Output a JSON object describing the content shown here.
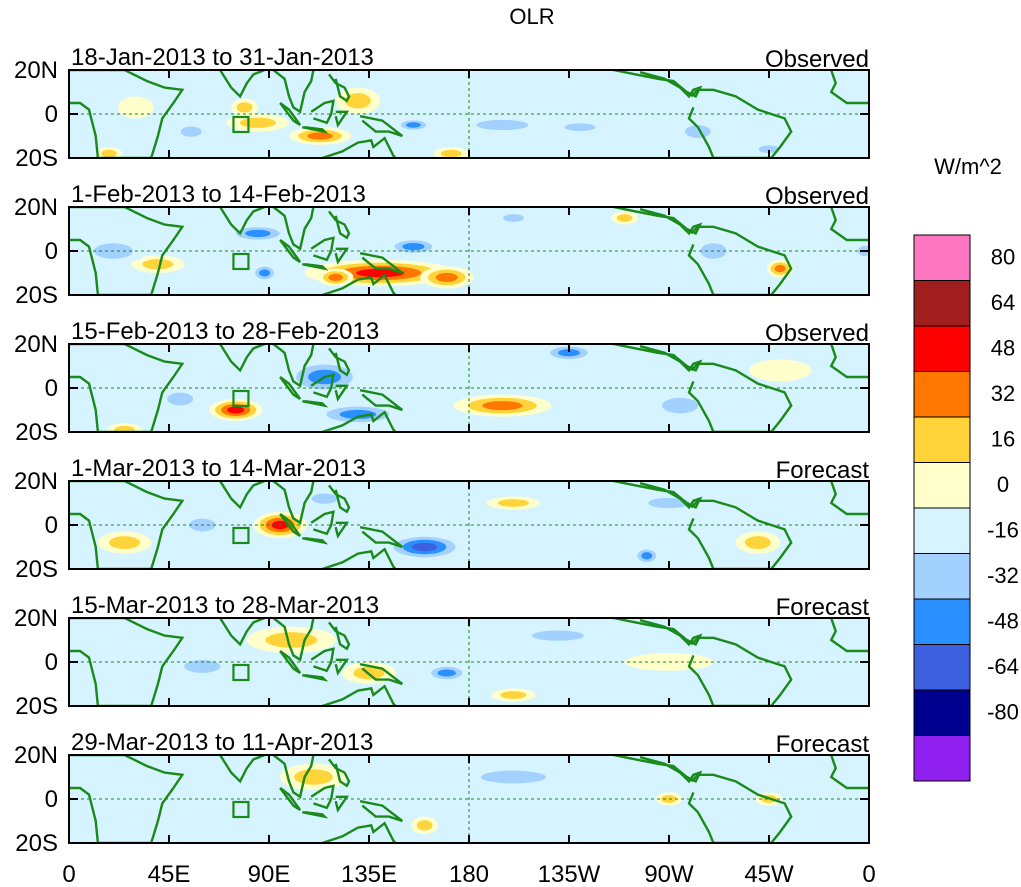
{
  "chart_data": {
    "type": "heatmap",
    "title": "OLR",
    "colorbar": {
      "unit": "W/m^2",
      "levels": [
        "80",
        "64",
        "48",
        "32",
        "16",
        "0",
        "-16",
        "-32",
        "-48",
        "-64",
        "-80"
      ],
      "colors": [
        "#ff77c0",
        "#a01e1e",
        "#ff0000",
        "#ff7700",
        "#ffd43b",
        "#ffffcc",
        "#d6f4ff",
        "#a2d0ff",
        "#2a90ff",
        "#3c60e0",
        "#00008f",
        "#9020f0"
      ]
    },
    "x_tick_labels": [
      "0",
      "45E",
      "90E",
      "135E",
      "180",
      "135W",
      "90W",
      "45W",
      "0"
    ],
    "y_tick_labels": [
      "20N",
      "0",
      "20S"
    ],
    "lon_range": [
      0,
      360
    ],
    "lat_range": [
      -20,
      20
    ],
    "panels": [
      {
        "period": "18-Jan-2013 to 31-Jan-2013",
        "kind": "Observed",
        "anomalies": [
          {
            "lon": 85,
            "lat": -4,
            "rlon": 14,
            "rlat": 4,
            "value": 24
          },
          {
            "lon": 113,
            "lat": -10,
            "rlon": 14,
            "rlat": 4,
            "value": 32
          },
          {
            "lon": 79,
            "lat": 3,
            "rlon": 6,
            "rlat": 4,
            "value": 18
          },
          {
            "lon": 130,
            "lat": 6,
            "rlon": 10,
            "rlat": 6,
            "value": 20
          },
          {
            "lon": 30,
            "lat": 3,
            "rlon": 8,
            "rlat": 5,
            "value": 12
          },
          {
            "lon": 18,
            "lat": -18,
            "rlon": 6,
            "rlat": 3,
            "value": 28
          },
          {
            "lon": 172,
            "lat": -18,
            "rlon": 8,
            "rlat": 3,
            "value": 24
          },
          {
            "lon": 55,
            "lat": -8,
            "rlon": 8,
            "rlat": 4,
            "value": -25
          },
          {
            "lon": 155,
            "lat": -5,
            "rlon": 8,
            "rlat": 3,
            "value": -35
          },
          {
            "lon": 195,
            "lat": -5,
            "rlon": 20,
            "rlat": 4,
            "value": -25
          },
          {
            "lon": 230,
            "lat": -6,
            "rlon": 12,
            "rlat": 3,
            "value": -30
          },
          {
            "lon": 283,
            "lat": -8,
            "rlon": 10,
            "rlat": 5,
            "value": -20
          },
          {
            "lon": 315,
            "lat": -16,
            "rlon": 8,
            "rlat": 3,
            "value": -18
          }
        ]
      },
      {
        "period": "1-Feb-2013 to 14-Feb-2013",
        "kind": "Observed",
        "anomalies": [
          {
            "lon": 140,
            "lat": -10,
            "rlon": 34,
            "rlat": 6,
            "value": 55
          },
          {
            "lon": 120,
            "lat": -12,
            "rlon": 8,
            "rlat": 4,
            "value": 45
          },
          {
            "lon": 170,
            "lat": -12,
            "rlon": 12,
            "rlat": 5,
            "value": 32
          },
          {
            "lon": 40,
            "lat": -6,
            "rlon": 12,
            "rlat": 4,
            "value": 16
          },
          {
            "lon": 320,
            "lat": -8,
            "rlon": 6,
            "rlat": 4,
            "value": 40
          },
          {
            "lon": 250,
            "lat": 15,
            "rlon": 6,
            "rlat": 3,
            "value": 18
          },
          {
            "lon": 85,
            "lat": 8,
            "rlon": 14,
            "rlat": 4,
            "value": -38
          },
          {
            "lon": 155,
            "lat": 2,
            "rlon": 12,
            "rlat": 4,
            "value": -45
          },
          {
            "lon": 88,
            "lat": -10,
            "rlon": 6,
            "rlat": 4,
            "value": -40
          },
          {
            "lon": 20,
            "lat": 0,
            "rlon": 15,
            "rlat": 6,
            "value": -20
          },
          {
            "lon": 290,
            "lat": 0,
            "rlon": 10,
            "rlat": 6,
            "value": -30
          },
          {
            "lon": 200,
            "lat": 15,
            "rlon": 8,
            "rlat": 3,
            "value": -25
          },
          {
            "lon": 358,
            "lat": 0,
            "rlon": 5,
            "rlat": 4,
            "value": -30
          }
        ]
      },
      {
        "period": "15-Feb-2013 to 28-Feb-2013",
        "kind": "Observed",
        "anomalies": [
          {
            "lon": 75,
            "lat": -10,
            "rlon": 12,
            "rlat": 5,
            "value": 50
          },
          {
            "lon": 195,
            "lat": -8,
            "rlon": 22,
            "rlat": 5,
            "value": 45
          },
          {
            "lon": 320,
            "lat": 8,
            "rlon": 14,
            "rlat": 5,
            "value": 12
          },
          {
            "lon": 25,
            "lat": -19,
            "rlon": 8,
            "rlat": 3,
            "value": 30
          },
          {
            "lon": 115,
            "lat": 5,
            "rlon": 18,
            "rlat": 8,
            "value": -40
          },
          {
            "lon": 130,
            "lat": -12,
            "rlon": 20,
            "rlat": 5,
            "value": -45
          },
          {
            "lon": 225,
            "lat": 16,
            "rlon": 12,
            "rlat": 4,
            "value": -40
          },
          {
            "lon": 275,
            "lat": -8,
            "rlon": 14,
            "rlat": 6,
            "value": -20
          },
          {
            "lon": 50,
            "lat": -5,
            "rlon": 10,
            "rlat": 5,
            "value": -18
          }
        ]
      },
      {
        "period": "1-Mar-2013 to 14-Mar-2013",
        "kind": "Forecast",
        "anomalies": [
          {
            "lon": 95,
            "lat": 0,
            "rlon": 12,
            "rlat": 6,
            "value": 62
          },
          {
            "lon": 25,
            "lat": -8,
            "rlon": 12,
            "rlat": 5,
            "value": 18
          },
          {
            "lon": 200,
            "lat": 10,
            "rlon": 12,
            "rlat": 3,
            "value": 18
          },
          {
            "lon": 310,
            "lat": -8,
            "rlon": 10,
            "rlat": 5,
            "value": 22
          },
          {
            "lon": 160,
            "lat": -10,
            "rlon": 18,
            "rlat": 6,
            "value": -55
          },
          {
            "lon": 115,
            "lat": 12,
            "rlon": 10,
            "rlat": 4,
            "value": -20
          },
          {
            "lon": 270,
            "lat": 10,
            "rlon": 16,
            "rlat": 4,
            "value": -30
          },
          {
            "lon": 260,
            "lat": -14,
            "rlon": 6,
            "rlat": 4,
            "value": -40
          },
          {
            "lon": 60,
            "lat": 0,
            "rlon": 10,
            "rlat": 5,
            "value": -18
          }
        ]
      },
      {
        "period": "15-Mar-2013 to 28-Mar-2013",
        "kind": "Forecast",
        "anomalies": [
          {
            "lon": 100,
            "lat": 10,
            "rlon": 20,
            "rlat": 6,
            "value": 22
          },
          {
            "lon": 135,
            "lat": -5,
            "rlon": 12,
            "rlat": 5,
            "value": 18
          },
          {
            "lon": 200,
            "lat": -15,
            "rlon": 10,
            "rlat": 3,
            "value": 18
          },
          {
            "lon": 270,
            "lat": 0,
            "rlon": 20,
            "rlat": 4,
            "value": 10
          },
          {
            "lon": 170,
            "lat": -5,
            "rlon": 10,
            "rlat": 4,
            "value": -40
          },
          {
            "lon": 60,
            "lat": -2,
            "rlon": 14,
            "rlat": 5,
            "value": -18
          },
          {
            "lon": 220,
            "lat": 12,
            "rlon": 20,
            "rlat": 4,
            "value": -18
          }
        ]
      },
      {
        "period": "29-Mar-2013 to 11-Apr-2013",
        "kind": "Forecast",
        "anomalies": [
          {
            "lon": 110,
            "lat": 10,
            "rlon": 15,
            "rlat": 6,
            "value": 25
          },
          {
            "lon": 160,
            "lat": -12,
            "rlon": 6,
            "rlat": 4,
            "value": 18
          },
          {
            "lon": 270,
            "lat": 0,
            "rlon": 6,
            "rlat": 3,
            "value": 16
          },
          {
            "lon": 315,
            "lat": 0,
            "rlon": 6,
            "rlat": 3,
            "value": 16
          },
          {
            "lon": 90,
            "lat": -8,
            "rlon": 15,
            "rlat": 5,
            "value": -16
          },
          {
            "lon": 200,
            "lat": 10,
            "rlon": 25,
            "rlat": 5,
            "value": -18
          },
          {
            "lon": 300,
            "lat": 12,
            "rlon": 10,
            "rlat": 3,
            "value": -16
          }
        ]
      }
    ]
  }
}
